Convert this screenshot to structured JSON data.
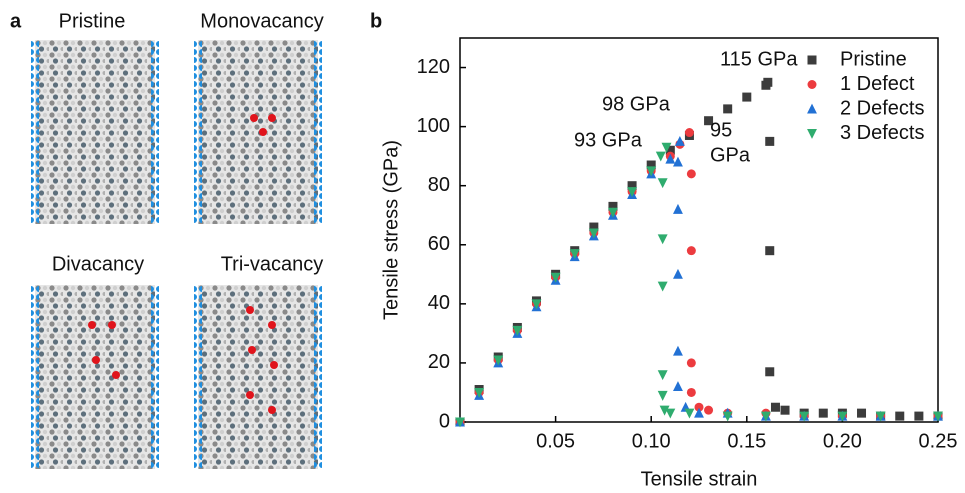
{
  "panel_a": {
    "label": "a",
    "structures": [
      "Pristine",
      "Monovacancy",
      "Divacancy",
      "Tri-vacancy"
    ]
  },
  "chart_data": {
    "type": "scatter",
    "panel_label": "b",
    "xlabel": "Tensile strain",
    "ylabel": "Tensile stress (GPa)",
    "xlim": [
      0,
      0.25
    ],
    "ylim": [
      0,
      130
    ],
    "xticks": [
      0.05,
      {
        "value": 0.1,
        "label": "0.10"
      },
      0.15,
      {
        "value": 0.2,
        "label": "0.20"
      },
      0.25
    ],
    "yticks": [
      0,
      20,
      40,
      60,
      80,
      100,
      120
    ],
    "legend": "top-right",
    "series": [
      {
        "name": "Pristine",
        "color": "#3c3c3c",
        "marker": "square",
        "x": [
          0,
          0.01,
          0.02,
          0.03,
          0.04,
          0.05,
          0.06,
          0.07,
          0.08,
          0.09,
          0.1,
          0.11,
          0.12,
          0.13,
          0.14,
          0.15,
          0.16,
          0.161,
          0.162,
          0.162,
          0.162,
          0.165,
          0.17,
          0.18,
          0.19,
          0.2,
          0.21,
          0.22,
          0.23,
          0.24,
          0.25
        ],
        "values": [
          0,
          11,
          22,
          32,
          41,
          50,
          58,
          66,
          73,
          80,
          87,
          92,
          97,
          102,
          106,
          110,
          114,
          115,
          95,
          58,
          17,
          5,
          4,
          3,
          3,
          3,
          3,
          2,
          2,
          2,
          2
        ]
      },
      {
        "name": "1 Defect",
        "color": "#ec3b3f",
        "marker": "circle",
        "x": [
          0,
          0.01,
          0.02,
          0.03,
          0.04,
          0.05,
          0.06,
          0.07,
          0.08,
          0.09,
          0.1,
          0.11,
          0.115,
          0.12,
          0.121,
          0.121,
          0.121,
          0.121,
          0.125,
          0.13,
          0.14,
          0.16,
          0.18,
          0.2,
          0.22,
          0.25
        ],
        "values": [
          0,
          10,
          21,
          31,
          40,
          49,
          57,
          64,
          71,
          78,
          85,
          90,
          94,
          98,
          84,
          58,
          20,
          10,
          5,
          4,
          3,
          3,
          2,
          2,
          2,
          2
        ]
      },
      {
        "name": "2 Defects",
        "color": "#2271d4",
        "marker": "triangle-up",
        "x": [
          0,
          0.01,
          0.02,
          0.03,
          0.04,
          0.05,
          0.06,
          0.07,
          0.08,
          0.09,
          0.1,
          0.11,
          0.115,
          0.114,
          0.114,
          0.114,
          0.114,
          0.114,
          0.118,
          0.125,
          0.14,
          0.16,
          0.18,
          0.2,
          0.22,
          0.25
        ],
        "values": [
          0,
          9,
          20,
          30,
          39,
          48,
          56,
          63,
          70,
          77,
          84,
          89,
          95,
          88,
          72,
          50,
          24,
          12,
          5,
          3,
          3,
          2,
          2,
          2,
          2,
          2
        ]
      },
      {
        "name": "3 Defects",
        "color": "#2fac6e",
        "marker": "triangle-down",
        "x": [
          0,
          0.01,
          0.02,
          0.03,
          0.04,
          0.05,
          0.06,
          0.07,
          0.08,
          0.09,
          0.1,
          0.105,
          0.108,
          0.106,
          0.106,
          0.106,
          0.106,
          0.106,
          0.107,
          0.11,
          0.12,
          0.14,
          0.16,
          0.18,
          0.2,
          0.22,
          0.25
        ],
        "values": [
          0,
          10,
          21,
          31,
          40,
          49,
          57,
          64,
          71,
          78,
          85,
          90,
          93,
          81,
          62,
          46,
          16,
          9,
          4,
          3,
          3,
          2,
          2,
          2,
          2,
          2,
          2
        ]
      }
    ],
    "annotations": [
      {
        "text": "115 GPa",
        "color": "#222222"
      },
      {
        "text": "98 GPa",
        "color": "#ec3b3f"
      },
      {
        "text": [
          "95",
          "GPa"
        ],
        "color": "#2271d4"
      },
      {
        "text": "93 GPa",
        "color": "#2fac6e"
      }
    ]
  }
}
